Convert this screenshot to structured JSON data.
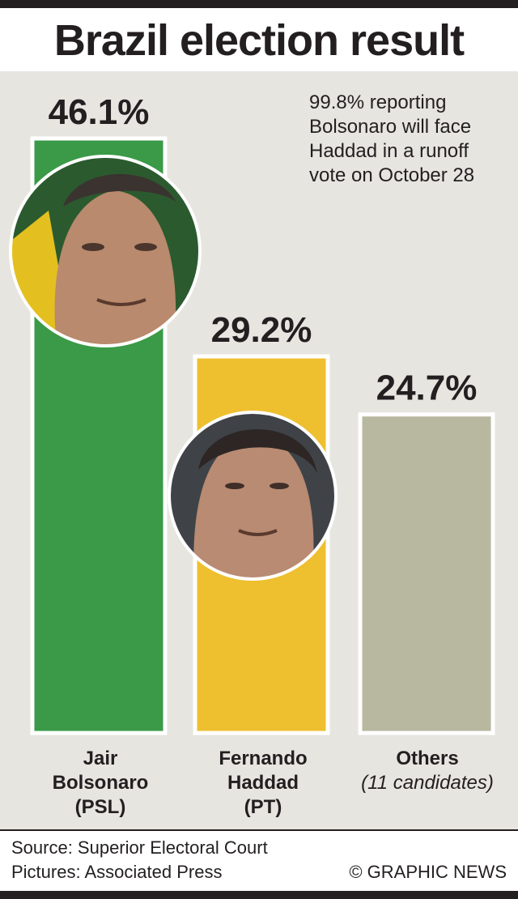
{
  "title": "Brazil election result",
  "note_lines": [
    "99.8% reporting",
    "Bolsonaro will face",
    "Haddad in a runoff",
    "vote on October 28"
  ],
  "source_lines": [
    "Source: Superior Electoral Court",
    "Pictures: Associated Press"
  ],
  "credit": "© GRAPHIC NEWS",
  "colors": {
    "bolsonaro": "#3a9a47",
    "haddad": "#eebf2f",
    "others": "#b8b7a0",
    "panel": "#e6e5e0",
    "text": "#231f20"
  },
  "candidates": [
    {
      "name_lines": [
        "Jair",
        "Bolsonaro",
        "(PSL)"
      ],
      "subtitle": ""
    },
    {
      "name_lines": [
        "Fernando",
        "Haddad",
        "(PT)"
      ],
      "subtitle": ""
    },
    {
      "name_lines": [
        "Others"
      ],
      "subtitle": "(11 candidates)"
    }
  ],
  "chart_data": {
    "type": "bar",
    "categories": [
      "Jair Bolsonaro (PSL)",
      "Fernando Haddad (PT)",
      "Others (11 candidates)"
    ],
    "values": [
      46.1,
      29.2,
      24.7
    ],
    "value_labels": [
      "46.1%",
      "29.2%",
      "24.7%"
    ],
    "colors": [
      "#3a9a47",
      "#eebf2f",
      "#b8b7a0"
    ],
    "title": "Brazil election result",
    "xlabel": "",
    "ylabel": "",
    "ylim": [
      0,
      46.1
    ],
    "grid": false,
    "photos": [
      "bolsonaro-photo",
      "haddad-photo",
      null
    ]
  }
}
